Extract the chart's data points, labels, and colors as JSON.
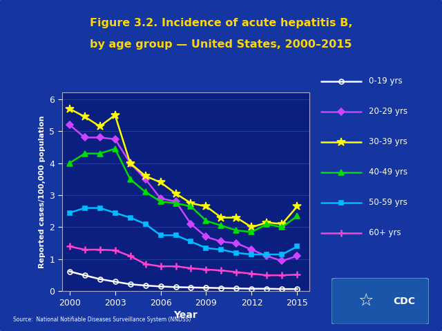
{
  "years": [
    2000,
    2001,
    2002,
    2003,
    2004,
    2005,
    2006,
    2007,
    2008,
    2009,
    2010,
    2011,
    2012,
    2013,
    2014,
    2015
  ],
  "series": {
    "0-19 yrs": {
      "values": [
        0.62,
        0.5,
        0.38,
        0.3,
        0.22,
        0.18,
        0.15,
        0.13,
        0.12,
        0.11,
        0.1,
        0.09,
        0.08,
        0.08,
        0.07,
        0.07
      ],
      "color": "#ffffff",
      "marker": "o",
      "marker_fc": "none",
      "linestyle": "-",
      "linewidth": 1.8,
      "markersize": 5
    },
    "20-29 yrs": {
      "values": [
        5.2,
        4.8,
        4.8,
        4.75,
        4.0,
        3.5,
        2.9,
        2.8,
        2.1,
        1.7,
        1.55,
        1.5,
        1.3,
        1.1,
        0.95,
        1.1
      ],
      "color": "#cc44ff",
      "marker": "D",
      "marker_fc": "#cc44ff",
      "linestyle": "-",
      "linewidth": 1.8,
      "markersize": 5
    },
    "30-39 yrs": {
      "values": [
        5.7,
        5.45,
        5.15,
        5.5,
        4.0,
        3.6,
        3.4,
        3.05,
        2.75,
        2.65,
        2.3,
        2.3,
        2.0,
        2.15,
        2.1,
        2.65
      ],
      "color": "#ffff00",
      "marker": "*",
      "marker_fc": "#ffff00",
      "linestyle": "-",
      "linewidth": 1.8,
      "markersize": 9
    },
    "40-49 yrs": {
      "values": [
        4.0,
        4.3,
        4.3,
        4.45,
        3.5,
        3.1,
        2.8,
        2.75,
        2.65,
        2.2,
        2.05,
        1.9,
        1.85,
        2.1,
        2.0,
        2.35
      ],
      "color": "#00dd00",
      "marker": "^",
      "marker_fc": "#00dd00",
      "linestyle": "-",
      "linewidth": 1.8,
      "markersize": 6
    },
    "50-59 yrs": {
      "values": [
        2.45,
        2.6,
        2.6,
        2.45,
        2.3,
        2.1,
        1.75,
        1.75,
        1.55,
        1.35,
        1.3,
        1.2,
        1.15,
        1.15,
        1.15,
        1.4
      ],
      "color": "#00bbff",
      "marker": "s",
      "marker_fc": "#00bbff",
      "linestyle": "-",
      "linewidth": 1.8,
      "markersize": 5
    },
    "60+ yrs": {
      "values": [
        1.4,
        1.3,
        1.3,
        1.28,
        1.1,
        0.85,
        0.78,
        0.78,
        0.72,
        0.68,
        0.65,
        0.6,
        0.55,
        0.5,
        0.5,
        0.52
      ],
      "color": "#ff44cc",
      "marker": "+",
      "marker_fc": "#ff44cc",
      "linestyle": "-",
      "linewidth": 1.8,
      "markersize": 7,
      "markeredgewidth": 1.8
    }
  },
  "title_line1": "Figure 3.2. Incidence of acute hepatitis B,",
  "title_line2": "by age group — United States, 2000–2015",
  "xlabel": "Year",
  "ylabel": "Reported cases/100,000 population",
  "ylim": [
    0,
    6.2
  ],
  "yticks": [
    0,
    1,
    2,
    3,
    4,
    5,
    6
  ],
  "xticks": [
    2000,
    2003,
    2006,
    2009,
    2012,
    2015
  ],
  "bg_outer": "#1535a0",
  "bg_plot": "#0a1f80",
  "title_color": "#ffd700",
  "axis_color": "#ffffff",
  "tick_color": "#ffffff",
  "source_text": "Source:  National Notifiable Diseases Surveillance System (NNDSS)",
  "legend_order": [
    "0-19 yrs",
    "20-29 yrs",
    "30-39 yrs",
    "40-49 yrs",
    "50-59 yrs",
    "60+ yrs"
  ]
}
